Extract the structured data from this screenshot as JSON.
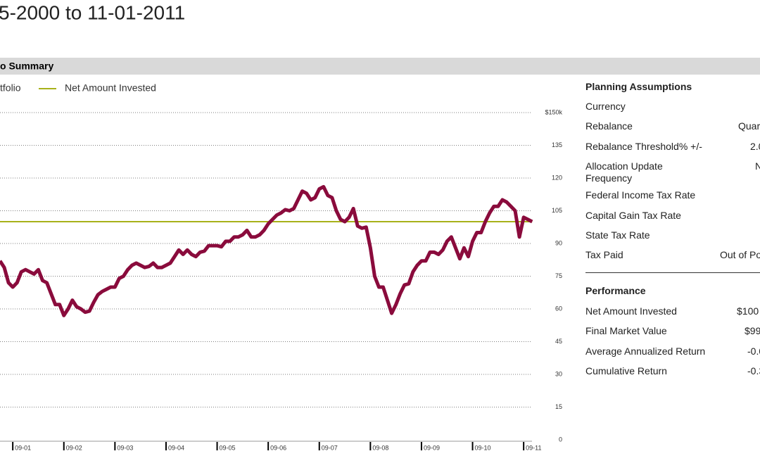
{
  "header": {
    "title": "5-2000 to 11-01-2011",
    "section": "o Summary"
  },
  "chart_data": {
    "type": "line",
    "categories": [
      null,
      null,
      null,
      "09-01",
      null,
      null,
      null,
      null,
      null,
      null,
      null,
      null,
      null,
      null,
      null,
      "09-02",
      null,
      null,
      null,
      null,
      null,
      null,
      null,
      null,
      null,
      null,
      null,
      "09-03",
      null,
      null,
      null,
      null,
      null,
      null,
      null,
      null,
      null,
      null,
      null,
      "09-04",
      null,
      null,
      null,
      null,
      null,
      null,
      null,
      null,
      null,
      null,
      null,
      "09-05",
      null,
      null,
      null,
      null,
      null,
      null,
      null,
      null,
      null,
      null,
      null,
      "09-06",
      null,
      null,
      null,
      null,
      null,
      null,
      null,
      null,
      null,
      null,
      null,
      "09-07",
      null,
      null,
      null,
      null,
      null,
      null,
      null,
      null,
      null,
      null,
      null,
      "09-08",
      null,
      null,
      null,
      null,
      null,
      null,
      null,
      null,
      null,
      null,
      null,
      "09-09",
      null,
      null,
      null,
      null,
      null,
      null,
      null,
      null,
      null,
      null,
      null,
      "09-10",
      null,
      null,
      null,
      null,
      null,
      null,
      null,
      null,
      null,
      null,
      null,
      "09-11",
      null,
      null
    ],
    "series": [
      {
        "name": "tfolio",
        "color": "#8a0b3c",
        "values": [
          82,
          79,
          72,
          70,
          72,
          77,
          78,
          77,
          76,
          78,
          73,
          72,
          67,
          62,
          62,
          57,
          60,
          64,
          61,
          60,
          58.5,
          59,
          63,
          66.5,
          68,
          69,
          70,
          70,
          74,
          75,
          78,
          80,
          81,
          80,
          79,
          79.5,
          81,
          79,
          79,
          80,
          81,
          84,
          87,
          85,
          87,
          85,
          84,
          86,
          86.5,
          89,
          89,
          89,
          88.5,
          91,
          91,
          93,
          93,
          94,
          96,
          93,
          93,
          94,
          96,
          99,
          101,
          103,
          104,
          105.5,
          105,
          106,
          110,
          114,
          113,
          110,
          111,
          115,
          116,
          112,
          111,
          105,
          101,
          100,
          102,
          106,
          98,
          97,
          97.5,
          88,
          75,
          70,
          70,
          64,
          58,
          62,
          67,
          71,
          71.5,
          77,
          80,
          82,
          82,
          86,
          86,
          85,
          87,
          91,
          93,
          88,
          83,
          88,
          84,
          91,
          95,
          95,
          100,
          104,
          107,
          107,
          110,
          109,
          107,
          105,
          93,
          102,
          101,
          100
        ]
      },
      {
        "name": "Net Amount Invested",
        "color": "#a8b11a",
        "values": [
          100,
          100,
          100,
          100,
          100,
          100,
          100,
          100,
          100,
          100,
          100,
          100,
          100,
          100,
          100,
          100,
          100,
          100,
          100,
          100,
          100,
          100,
          100,
          100,
          100,
          100,
          100,
          100,
          100,
          100,
          100,
          100,
          100,
          100,
          100,
          100,
          100,
          100,
          100,
          100,
          100,
          100,
          100,
          100,
          100,
          100,
          100,
          100,
          100,
          100,
          100,
          100,
          100,
          100,
          100,
          100,
          100,
          100,
          100,
          100,
          100,
          100,
          100,
          100,
          100,
          100,
          100,
          100,
          100,
          100,
          100,
          100,
          100,
          100,
          100,
          100,
          100,
          100,
          100,
          100,
          100,
          100,
          100,
          100,
          100,
          100,
          100,
          100,
          100,
          100,
          100,
          100,
          100,
          100,
          100,
          100,
          100,
          100,
          100,
          100,
          100,
          100,
          100,
          100,
          100,
          100,
          100,
          100,
          100,
          100,
          100,
          100,
          100,
          100,
          100,
          100,
          100,
          100,
          100,
          100,
          100,
          100,
          100,
          100,
          100,
          100
        ]
      }
    ],
    "ylim": [
      0,
      150
    ],
    "yticks": [
      0,
      15,
      30,
      45,
      60,
      75,
      90,
      105,
      120,
      135,
      {
        "value": 150,
        "label": "$150k"
      }
    ],
    "grid": true
  },
  "planning": {
    "title": "Planning Assumptions",
    "rows": [
      {
        "label": "Currency"
      },
      {
        "label": "Rebalance",
        "value": "Quar"
      },
      {
        "label": "Rebalance Threshold% +/-",
        "value": "2.0"
      },
      {
        "label": "Allocation Update Frequency",
        "value": "N"
      },
      {
        "label": "Federal Income Tax Rate"
      },
      {
        "label": "Capital Gain Tax Rate"
      },
      {
        "label": "State Tax Rate"
      },
      {
        "label": "Tax Paid",
        "value": "Out of Po"
      }
    ]
  },
  "performance": {
    "title": "Performance",
    "rows": [
      {
        "label": "Net Amount Invested",
        "value": "$100"
      },
      {
        "label": "Final Market Value",
        "value": "$99"
      },
      {
        "label": "Average Annualized Return",
        "value": "-0.0"
      },
      {
        "label": "Cumulative Return",
        "value": "-0.3"
      }
    ]
  }
}
